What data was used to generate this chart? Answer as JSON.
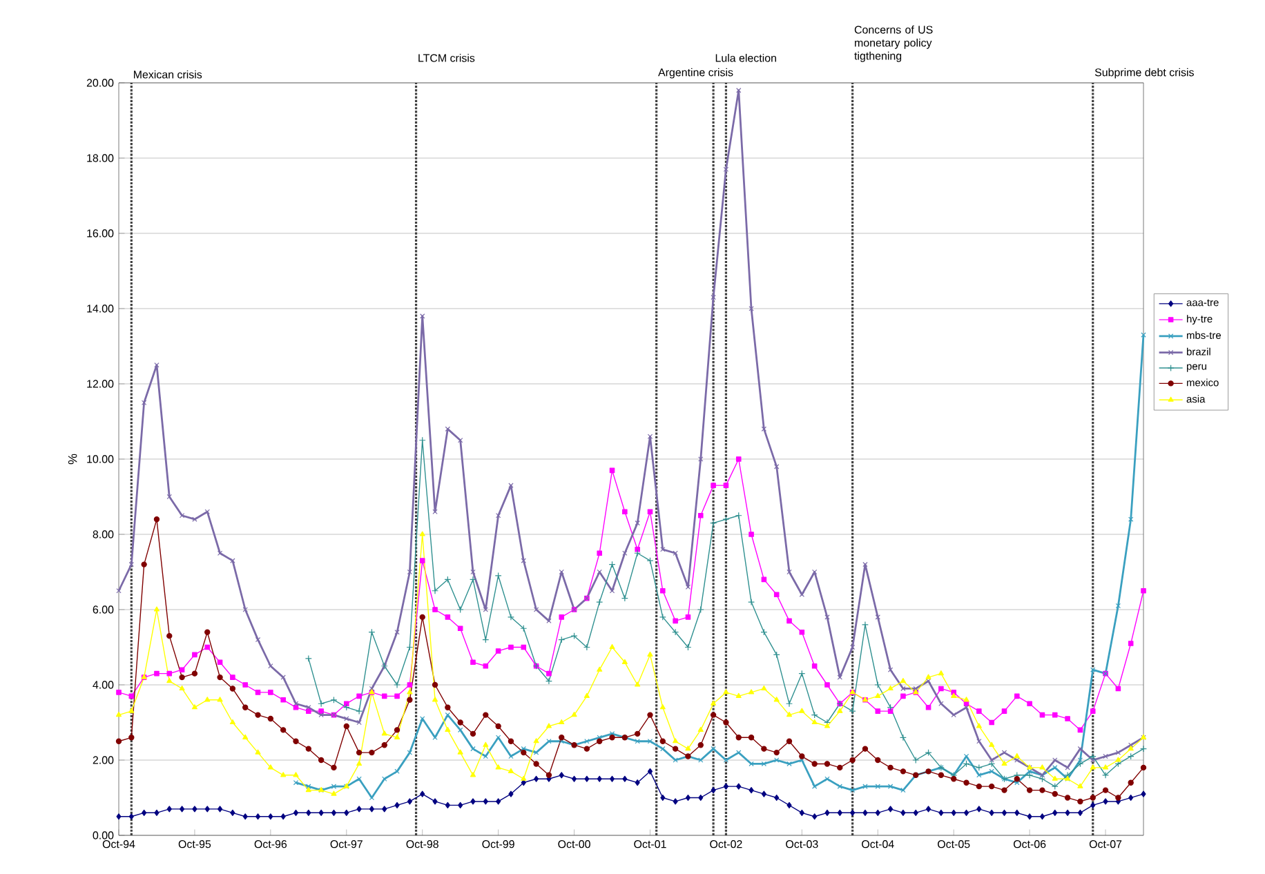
{
  "chart_data": {
    "type": "line",
    "ylabel": "%",
    "x": [
      "1994-10",
      "1994-12",
      "1995-02",
      "1995-04",
      "1995-06",
      "1995-08",
      "1995-10",
      "1995-12",
      "1996-02",
      "1996-04",
      "1996-06",
      "1996-08",
      "1996-10",
      "1996-12",
      "1997-02",
      "1997-04",
      "1997-06",
      "1997-08",
      "1997-10",
      "1997-12",
      "1998-02",
      "1998-04",
      "1998-06",
      "1998-08",
      "1998-10",
      "1998-12",
      "1999-02",
      "1999-04",
      "1999-06",
      "1999-08",
      "1999-10",
      "1999-12",
      "2000-02",
      "2000-04",
      "2000-06",
      "2000-08",
      "2000-10",
      "2000-12",
      "2001-02",
      "2001-04",
      "2001-06",
      "2001-08",
      "2001-10",
      "2001-12",
      "2002-02",
      "2002-04",
      "2002-06",
      "2002-08",
      "2002-10",
      "2002-12",
      "2003-02",
      "2003-04",
      "2003-06",
      "2003-08",
      "2003-10",
      "2003-12",
      "2004-02",
      "2004-04",
      "2004-06",
      "2004-08",
      "2004-10",
      "2004-12",
      "2005-02",
      "2005-04",
      "2005-06",
      "2005-08",
      "2005-10",
      "2005-12",
      "2006-02",
      "2006-04",
      "2006-06",
      "2006-08",
      "2006-10",
      "2006-12",
      "2007-02",
      "2007-04",
      "2007-06",
      "2007-08",
      "2007-10",
      "2007-12",
      "2008-02",
      "2008-04"
    ],
    "series": [
      {
        "name": "aaa-tre",
        "color": "#000080",
        "marker": "diamond",
        "values": [
          0.5,
          0.5,
          0.6,
          0.6,
          0.7,
          0.7,
          0.7,
          0.7,
          0.7,
          0.6,
          0.5,
          0.5,
          0.5,
          0.5,
          0.6,
          0.6,
          0.6,
          0.6,
          0.6,
          0.7,
          0.7,
          0.7,
          0.8,
          0.9,
          1.1,
          0.9,
          0.8,
          0.8,
          0.9,
          0.9,
          0.9,
          1.1,
          1.4,
          1.5,
          1.5,
          1.6,
          1.5,
          1.5,
          1.5,
          1.5,
          1.5,
          1.4,
          1.7,
          1.0,
          0.9,
          1.0,
          1.0,
          1.2,
          1.3,
          1.3,
          1.2,
          1.1,
          1.0,
          0.8,
          0.6,
          0.5,
          0.6,
          0.6,
          0.6,
          0.6,
          0.6,
          0.7,
          0.6,
          0.6,
          0.7,
          0.6,
          0.6,
          0.6,
          0.7,
          0.6,
          0.6,
          0.6,
          0.5,
          0.5,
          0.6,
          0.6,
          0.6,
          0.8,
          0.9,
          0.9,
          1.0,
          1.1
        ]
      },
      {
        "name": "hy-tre",
        "color": "#ff00ff",
        "marker": "square",
        "values": [
          3.8,
          3.7,
          4.2,
          4.3,
          4.3,
          4.4,
          4.8,
          5.0,
          4.6,
          4.2,
          4.0,
          3.8,
          3.8,
          3.6,
          3.4,
          3.3,
          3.3,
          3.2,
          3.5,
          3.7,
          3.8,
          3.7,
          3.7,
          4.0,
          7.3,
          6.0,
          5.8,
          5.5,
          4.6,
          4.5,
          4.9,
          5.0,
          5.0,
          4.5,
          4.3,
          5.8,
          6.0,
          6.3,
          7.5,
          9.7,
          8.6,
          7.6,
          8.6,
          6.5,
          5.7,
          5.8,
          8.5,
          9.3,
          9.3,
          10.0,
          8.0,
          6.8,
          6.4,
          5.7,
          5.4,
          4.5,
          4.0,
          3.5,
          3.8,
          3.6,
          3.3,
          3.3,
          3.7,
          3.8,
          3.4,
          3.9,
          3.8,
          3.5,
          3.3,
          3.0,
          3.3,
          3.7,
          3.5,
          3.2,
          3.2,
          3.1,
          2.8,
          3.3,
          4.3,
          3.9,
          5.1,
          6.5
        ]
      },
      {
        "name": "mbs-tre",
        "color": "#3aa0c0",
        "marker": "cross",
        "values": [
          null,
          null,
          null,
          null,
          null,
          null,
          null,
          null,
          null,
          null,
          null,
          null,
          null,
          null,
          1.4,
          1.3,
          1.2,
          1.3,
          1.3,
          1.5,
          1.0,
          1.5,
          1.7,
          2.2,
          3.1,
          2.6,
          3.2,
          2.8,
          2.3,
          2.1,
          2.6,
          2.1,
          2.3,
          2.2,
          2.5,
          2.5,
          2.4,
          2.5,
          2.6,
          2.7,
          2.6,
          2.5,
          2.5,
          2.3,
          2.0,
          2.1,
          2.0,
          2.3,
          2.0,
          2.2,
          1.9,
          1.9,
          2.0,
          1.9,
          2.0,
          1.3,
          1.5,
          1.3,
          1.2,
          1.3,
          1.3,
          1.3,
          1.2,
          1.6,
          1.7,
          1.8,
          1.6,
          2.1,
          1.6,
          1.7,
          1.5,
          1.4,
          1.7,
          1.6,
          1.8,
          1.5,
          2.0,
          4.4,
          4.3,
          6.1,
          8.4,
          13.3
        ]
      },
      {
        "name": "brazil",
        "color": "#7b6aa8",
        "marker": "cross",
        "values": [
          6.5,
          7.2,
          11.5,
          12.5,
          9.0,
          8.5,
          8.4,
          8.6,
          7.5,
          7.3,
          6.0,
          5.2,
          4.5,
          4.2,
          3.5,
          3.4,
          3.2,
          3.2,
          3.1,
          3.0,
          3.9,
          4.5,
          5.4,
          7.0,
          13.8,
          8.6,
          10.8,
          10.5,
          7.0,
          6.0,
          8.5,
          9.3,
          7.3,
          6.0,
          5.7,
          7.0,
          6.0,
          6.3,
          7.0,
          6.5,
          7.5,
          8.3,
          10.6,
          7.6,
          7.5,
          6.6,
          10.0,
          14.3,
          17.7,
          19.8,
          14.0,
          10.8,
          9.8,
          7.0,
          6.4,
          7.0,
          5.8,
          4.2,
          5.0,
          7.2,
          5.8,
          4.4,
          3.9,
          3.9,
          4.1,
          3.5,
          3.2,
          3.4,
          2.5,
          2.0,
          2.2,
          2.0,
          1.8,
          1.6,
          2.0,
          1.8,
          2.3,
          2.0,
          2.1,
          2.2,
          2.4,
          2.6
        ]
      },
      {
        "name": "peru",
        "color": "#2f9090",
        "marker": "plus",
        "values": [
          null,
          null,
          null,
          null,
          null,
          null,
          null,
          null,
          null,
          null,
          null,
          null,
          null,
          null,
          null,
          4.7,
          3.5,
          3.6,
          3.4,
          3.3,
          5.4,
          4.5,
          4.0,
          5.0,
          10.5,
          6.5,
          6.8,
          6.0,
          6.8,
          5.2,
          6.9,
          5.8,
          5.5,
          4.5,
          4.1,
          5.2,
          5.3,
          5.0,
          6.2,
          7.2,
          6.3,
          7.5,
          7.3,
          5.8,
          5.4,
          5.0,
          6.0,
          8.3,
          8.4,
          8.5,
          6.2,
          5.4,
          4.8,
          3.5,
          4.3,
          3.2,
          3.0,
          3.5,
          3.3,
          5.6,
          4.0,
          3.4,
          2.6,
          2.0,
          2.2,
          1.8,
          1.6,
          1.9,
          1.8,
          1.9,
          1.5,
          1.6,
          1.6,
          1.5,
          1.3,
          1.6,
          1.9,
          2.1,
          1.6,
          1.9,
          2.1,
          2.3
        ]
      },
      {
        "name": "mexico",
        "color": "#800000",
        "marker": "circle",
        "values": [
          2.5,
          2.6,
          7.2,
          8.4,
          5.3,
          4.2,
          4.3,
          5.4,
          4.2,
          3.9,
          3.4,
          3.2,
          3.1,
          2.8,
          2.5,
          2.3,
          2.0,
          1.8,
          2.9,
          2.2,
          2.2,
          2.4,
          2.8,
          3.6,
          5.8,
          4.0,
          3.4,
          3.0,
          2.7,
          3.2,
          2.9,
          2.5,
          2.2,
          1.9,
          1.6,
          2.6,
          2.4,
          2.3,
          2.5,
          2.6,
          2.6,
          2.7,
          3.2,
          2.5,
          2.3,
          2.1,
          2.4,
          3.2,
          3.0,
          2.6,
          2.6,
          2.3,
          2.2,
          2.5,
          2.1,
          1.9,
          1.9,
          1.8,
          2.0,
          2.3,
          2.0,
          1.8,
          1.7,
          1.6,
          1.7,
          1.6,
          1.5,
          1.4,
          1.3,
          1.3,
          1.2,
          1.5,
          1.2,
          1.2,
          1.1,
          1.0,
          0.9,
          1.0,
          1.2,
          1.0,
          1.4,
          1.8
        ]
      },
      {
        "name": "asia",
        "color": "#ffff00",
        "marker": "triangle",
        "values": [
          3.2,
          3.3,
          4.2,
          6.0,
          4.1,
          3.9,
          3.4,
          3.6,
          3.6,
          3.0,
          2.6,
          2.2,
          1.8,
          1.6,
          1.6,
          1.2,
          1.2,
          1.1,
          1.3,
          1.9,
          3.8,
          2.7,
          2.6,
          3.8,
          8.0,
          3.6,
          2.8,
          2.2,
          1.6,
          2.4,
          1.8,
          1.7,
          1.5,
          2.5,
          2.9,
          3.0,
          3.2,
          3.7,
          4.4,
          5.0,
          4.6,
          4.0,
          4.8,
          3.4,
          2.5,
          2.3,
          2.8,
          3.5,
          3.8,
          3.7,
          3.8,
          3.9,
          3.6,
          3.2,
          3.3,
          3.0,
          2.9,
          3.3,
          3.8,
          3.6,
          3.7,
          3.9,
          4.1,
          3.8,
          4.2,
          4.3,
          3.7,
          3.6,
          2.9,
          2.4,
          1.9,
          2.1,
          1.8,
          1.8,
          1.5,
          1.5,
          1.3,
          1.8,
          1.8,
          2.0,
          2.3,
          2.6
        ]
      }
    ],
    "xlim": [
      "1994-10",
      "2008-04"
    ],
    "xticks": [
      {
        "value": "1994-10",
        "label": "Oct-94"
      },
      {
        "value": "1995-10",
        "label": "Oct-95"
      },
      {
        "value": "1996-10",
        "label": "Oct-96"
      },
      {
        "value": "1997-10",
        "label": "Oct-97"
      },
      {
        "value": "1998-10",
        "label": "Oct-98"
      },
      {
        "value": "1999-10",
        "label": "Oct-99"
      },
      {
        "value": "2000-10",
        "label": "Oct-00"
      },
      {
        "value": "2001-10",
        "label": "Oct-01"
      },
      {
        "value": "2002-10",
        "label": "Oct-02"
      },
      {
        "value": "2003-10",
        "label": "Oct-03"
      },
      {
        "value": "2004-10",
        "label": "Oct-04"
      },
      {
        "value": "2005-10",
        "label": "Oct-05"
      },
      {
        "value": "2006-10",
        "label": "Oct-06"
      },
      {
        "value": "2007-10",
        "label": "Oct-07"
      }
    ],
    "ylim": [
      0,
      20
    ],
    "yticks": [
      {
        "value": 0,
        "label": "0.00"
      },
      {
        "value": 2,
        "label": "2.00"
      },
      {
        "value": 4,
        "label": "4.00"
      },
      {
        "value": 6,
        "label": "6.00"
      },
      {
        "value": 8,
        "label": "8.00"
      },
      {
        "value": 10,
        "label": "10.00"
      },
      {
        "value": 12,
        "label": "12.00"
      },
      {
        "value": 14,
        "label": "14.00"
      },
      {
        "value": 16,
        "label": "16.00"
      },
      {
        "value": 18,
        "label": "18.00"
      },
      {
        "value": 20,
        "label": "20.00"
      }
    ],
    "ref_lines": [
      {
        "axis": "x",
        "value": "1994-12",
        "label": "Mexican crisis",
        "line_style": "dotted"
      },
      {
        "axis": "x",
        "value": "1998-09",
        "label": "LTCM crisis",
        "line_style": "dotted"
      },
      {
        "axis": "x",
        "value": "2001-11",
        "label": "Argentine crisis",
        "line_style": "dotted"
      },
      {
        "axis": "x",
        "value": "2002-08",
        "label": "Lula election",
        "line_style": "dotted"
      },
      {
        "axis": "x",
        "value": "2002-10",
        "line_style": "dotted"
      },
      {
        "axis": "x",
        "value": "2004-06",
        "label": "Concerns of US monetary policy tigthening",
        "line_style": "dotted"
      },
      {
        "axis": "x",
        "value": "2007-08",
        "label": "Subprime debt crisis",
        "line_style": "dotted"
      }
    ],
    "grid": "y",
    "legend": "right",
    "line_style": "solid"
  }
}
